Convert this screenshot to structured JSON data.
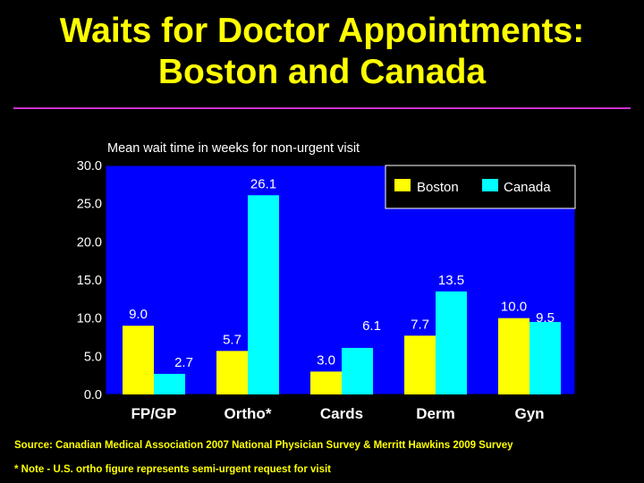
{
  "slide": {
    "title_line1": "Waits for Doctor Appointments:",
    "title_line2": "Boston and Canada",
    "source": "Source: Canadian Medical Association 2007 National Physician Survey & Merritt Hawkins 2009 Survey",
    "note": "* Note - U.S. ortho figure represents semi-urgent request for visit"
  },
  "chart_data": {
    "type": "bar",
    "title": "Mean wait time in weeks for non-urgent visit",
    "xlabel": "",
    "ylabel": "",
    "ylim": [
      0,
      30
    ],
    "yticks": [
      0,
      5,
      10,
      15,
      20,
      25,
      30
    ],
    "ytick_labels": [
      "0.0",
      "5.0",
      "10.0",
      "15.0",
      "20.0",
      "25.0",
      "30.0"
    ],
    "categories": [
      "FP/GP",
      "Ortho*",
      "Cards",
      "Derm",
      "Gyn"
    ],
    "series": [
      {
        "name": "Boston",
        "color": "#FFFF00",
        "values": [
          9.0,
          5.7,
          3.0,
          7.7,
          10.0
        ],
        "labels": [
          "9.0",
          "5.7",
          "3.0",
          "7.7",
          "10.0"
        ]
      },
      {
        "name": "Canada",
        "color": "#00FFFF",
        "values": [
          2.7,
          26.1,
          6.1,
          13.5,
          9.5
        ],
        "labels": [
          "2.7",
          "26.1",
          "6.1",
          "13.5",
          "9.5"
        ]
      }
    ],
    "legend_position": "top-right",
    "grid": false,
    "plot_background": "#0000FF",
    "text_color": "#FFFFFF"
  }
}
